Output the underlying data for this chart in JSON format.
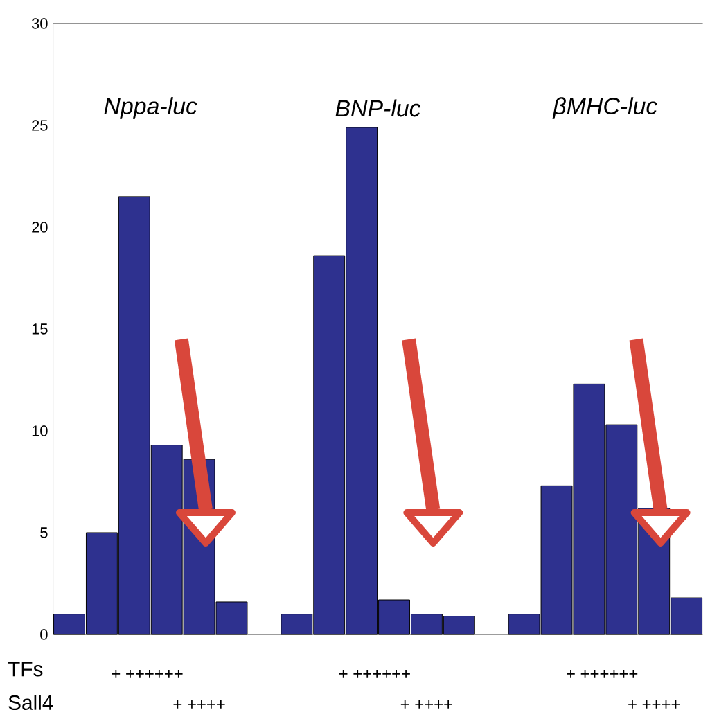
{
  "chart_data": {
    "type": "bar",
    "categories": [
      null,
      null,
      null,
      null,
      null,
      null,
      null,
      null,
      null,
      null,
      null,
      null,
      null,
      null,
      null,
      null,
      null,
      null,
      null,
      null
    ],
    "values": [
      1.0,
      5.0,
      21.5,
      9.3,
      8.6,
      1.6,
      null,
      1.0,
      18.6,
      24.9,
      1.7,
      1.0,
      0.9,
      null,
      1.0,
      7.3,
      12.3,
      10.3,
      6.2,
      1.8
    ],
    "color": "#2e318f",
    "ylim": [
      0,
      30
    ],
    "yticks": [
      0,
      5,
      10,
      15,
      20,
      25,
      30
    ],
    "grid": false,
    "annotations": [
      "Nppa-luc",
      "BNP-luc",
      "βMHC-luc",
      "TFs",
      "Sall4",
      "+ ++++++",
      "+ ++++",
      "+ ++++++",
      "+ ++++",
      "+ ++++++",
      "+ ++++"
    ]
  }
}
